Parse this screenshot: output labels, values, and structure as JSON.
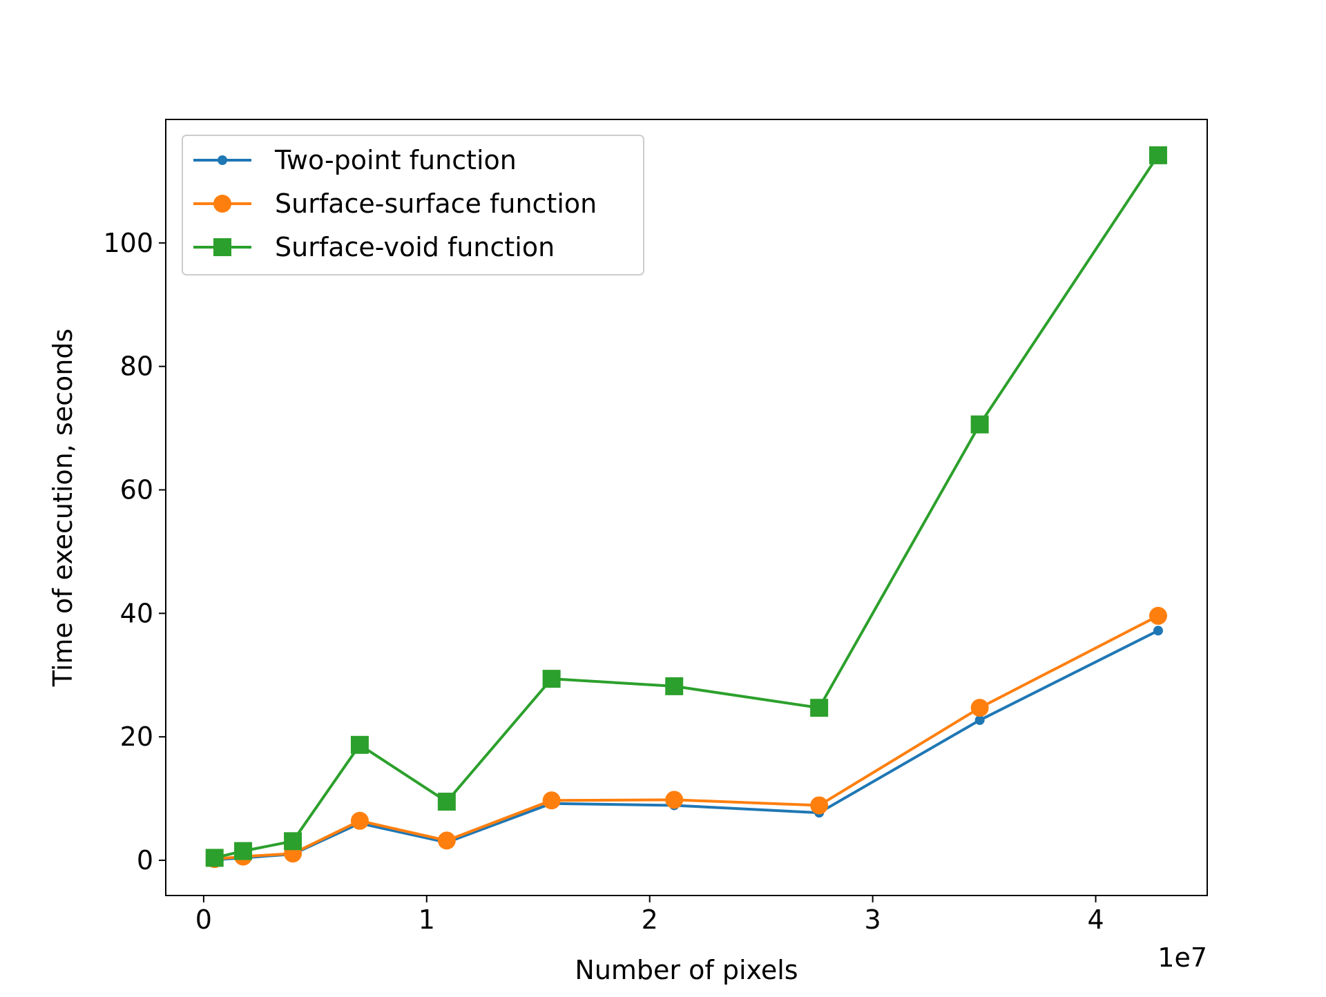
{
  "chart_data": {
    "type": "line",
    "title": "",
    "xlabel": "Number of pixels",
    "ylabel": "Time of execution, seconds",
    "x_offset_label": "1e7",
    "xlim": [
      -1700000,
      45000000
    ],
    "ylim": [
      -5.7,
      120
    ],
    "x_ticks": [
      0,
      10000000,
      20000000,
      30000000,
      40000000
    ],
    "x_tick_labels": [
      "0",
      "1",
      "2",
      "3",
      "4"
    ],
    "y_ticks": [
      0,
      20,
      40,
      60,
      80,
      100
    ],
    "y_tick_labels": [
      "0",
      "20",
      "40",
      "60",
      "80",
      "100"
    ],
    "grid": false,
    "legend_position": "top-left",
    "x": [
      490000,
      1770000,
      4000000,
      7000000,
      10900000,
      15600000,
      21100000,
      27600000,
      34800000,
      42800000
    ],
    "series": [
      {
        "name": "Two-point function",
        "color": "#1f77b4",
        "marker": "point",
        "values": [
          0.1,
          0.4,
          1.0,
          6.0,
          2.9,
          9.2,
          8.9,
          7.7,
          22.7,
          37.2
        ]
      },
      {
        "name": "Surface-surface function",
        "color": "#ff7f0e",
        "marker": "circle",
        "values": [
          0.2,
          0.6,
          1.1,
          6.4,
          3.2,
          9.7,
          9.8,
          8.9,
          24.7,
          39.6
        ]
      },
      {
        "name": "Surface-void function",
        "color": "#2ca02c",
        "marker": "square",
        "values": [
          0.4,
          1.5,
          3.1,
          18.7,
          9.5,
          29.4,
          28.2,
          24.7,
          70.6,
          114.2
        ]
      }
    ]
  }
}
